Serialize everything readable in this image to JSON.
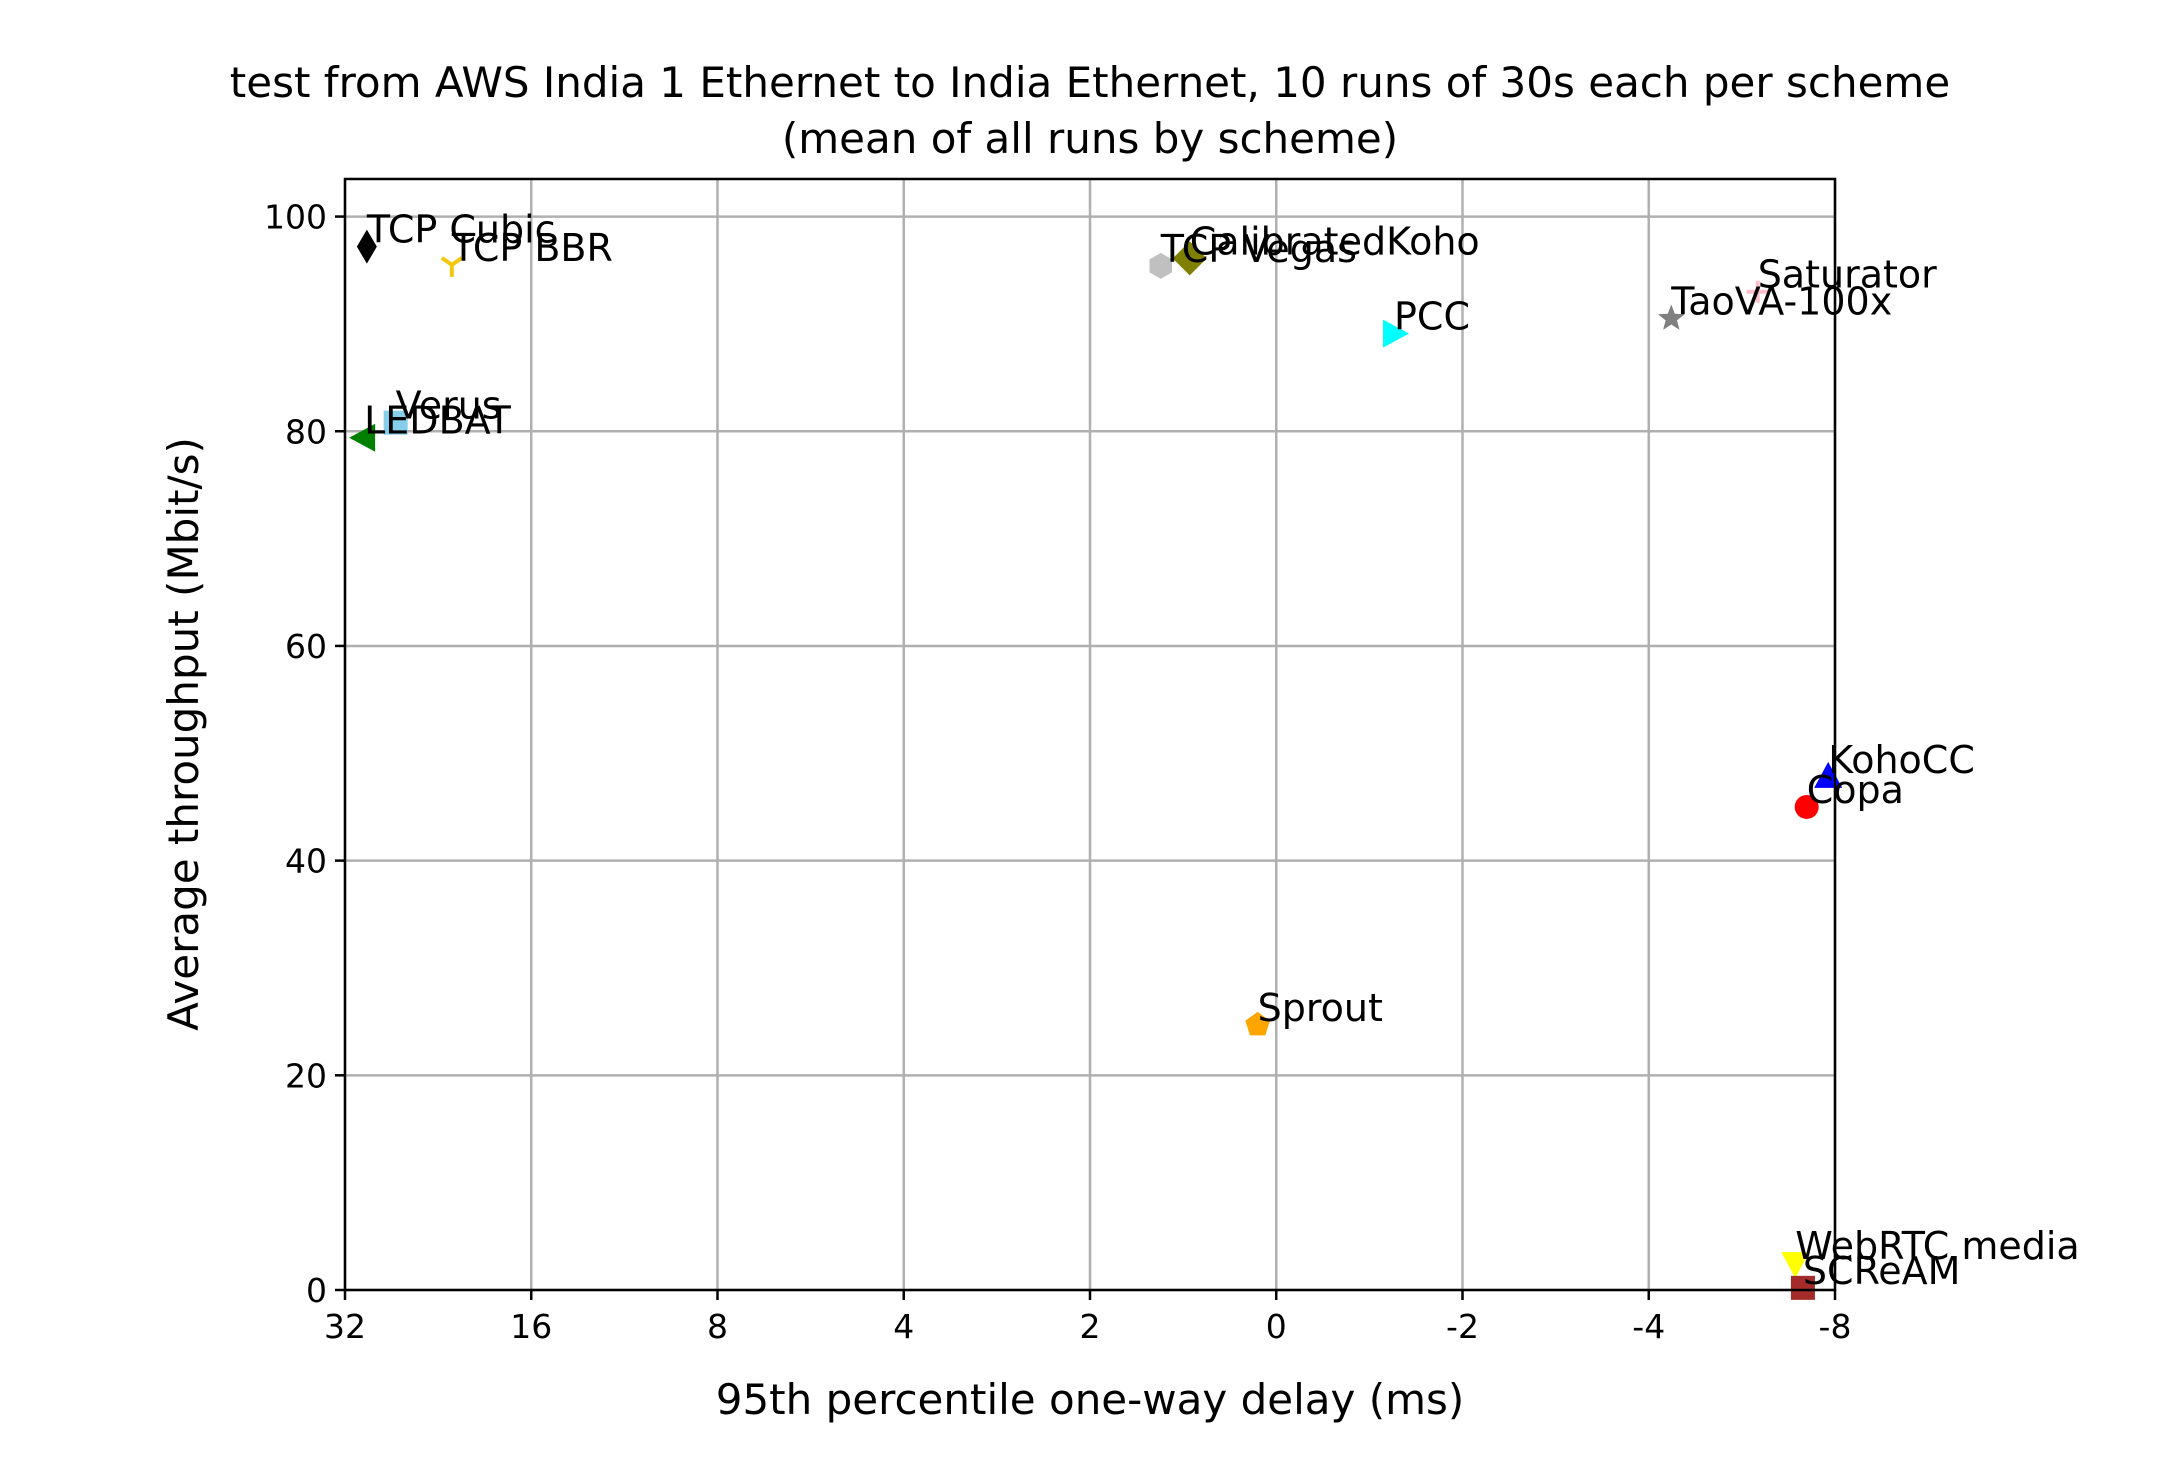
{
  "chart_data": {
    "type": "scatter",
    "title": "test from AWS India 1 Ethernet to India Ethernet, 10 runs of 30s each per scheme",
    "subtitle": "(mean of all runs by scheme)",
    "xlabel": "95th percentile one-way delay (ms)",
    "ylabel": "Average throughput (Mbit/s)",
    "x_scale": "symlog base 2 (inverted)",
    "x_ticks": [
      {
        "value": 32,
        "label": "32"
      },
      {
        "value": 16,
        "label": "16"
      },
      {
        "value": 8,
        "label": "8"
      },
      {
        "value": 4,
        "label": "4"
      },
      {
        "value": 2,
        "label": "2"
      },
      {
        "value": 0,
        "label": "0"
      },
      {
        "value": -2,
        "label": "-2"
      },
      {
        "value": -4,
        "label": "-4"
      },
      {
        "value": -8,
        "label": "-8"
      }
    ],
    "y_ticks": [
      0,
      20,
      40,
      60,
      80,
      100
    ],
    "ylim": [
      0,
      103.5
    ],
    "grid": true,
    "points": [
      {
        "name": "TCP Cubic",
        "x": 29.5,
        "y": 97.2,
        "color": "#000000",
        "marker": "thin_diamond"
      },
      {
        "name": "TCP BBR",
        "x": 21.5,
        "y": 95.5,
        "color": "#f2c80f",
        "marker": "tri_down"
      },
      {
        "name": "CalibratedKoho",
        "x": 1.38,
        "y": 96.1,
        "color": "#808000",
        "marker": "diamond"
      },
      {
        "name": "TCP Vegas",
        "x": 0.62,
        "y": 95.4,
        "color": "#c0c0c0",
        "marker": "hexagon"
      },
      {
        "name": "PCC",
        "x": -1.55,
        "y": 89.1,
        "color": "#00ffff",
        "marker": "triangle_right"
      },
      {
        "name": "Saturator",
        "x": -6.0,
        "y": 93.0,
        "color": "#ffc0cb",
        "marker": "plus"
      },
      {
        "name": "TaoVA-100x",
        "x": -4.35,
        "y": 90.5,
        "color": "#808080",
        "marker": "star"
      },
      {
        "name": "Verus",
        "x": 26.5,
        "y": 80.8,
        "color": "#87ceeb",
        "marker": "square"
      },
      {
        "name": "LEDBAT",
        "x": 29.8,
        "y": 79.4,
        "color": "#008000",
        "marker": "triangle_left"
      },
      {
        "name": "KohoCC",
        "x": -7.8,
        "y": 47.8,
        "color": "#0000ff",
        "marker": "triangle_up"
      },
      {
        "name": "Copa",
        "x": -7.2,
        "y": 45.0,
        "color": "#ff0000",
        "marker": "circle"
      },
      {
        "name": "Sprout",
        "x": 0.1,
        "y": 24.7,
        "color": "#ffa500",
        "marker": "pentagon"
      },
      {
        "name": "WebRTC media",
        "x": -6.9,
        "y": 2.5,
        "color": "#ffff00",
        "marker": "triangle_down"
      },
      {
        "name": "SCReAM",
        "x": -7.1,
        "y": 0.2,
        "color": "#a52a2a",
        "marker": "square"
      }
    ]
  }
}
